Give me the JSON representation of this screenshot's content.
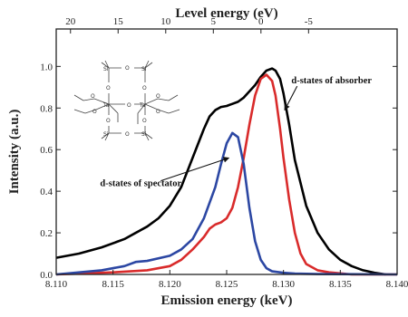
{
  "chart_data": {
    "type": "line",
    "title": "",
    "xlabel": "Emission energy (keV)",
    "ylabel": "Intensity (a.u.)",
    "x2label": "Level energy (eV)",
    "xlim": [
      8.11,
      8.14
    ],
    "ylim": [
      0,
      1.18
    ],
    "x2lim": [
      21.5,
      -14.3
    ],
    "xticks": [
      8.11,
      8.115,
      8.12,
      8.125,
      8.13,
      8.135,
      8.14
    ],
    "xtick_labels": [
      "8.110",
      "8.115",
      "8.120",
      "8.125",
      "8.130",
      "8.135",
      "8.140"
    ],
    "yticks": [
      0,
      0.2,
      0.4,
      0.6,
      0.8,
      1.0
    ],
    "ytick_labels": [
      "0.0",
      "0.2",
      "0.4",
      "0.6",
      "0.8",
      "1.0"
    ],
    "x2ticks": [
      20,
      15,
      10,
      5,
      0,
      -5
    ],
    "x2tick_labels": [
      "20",
      "15",
      "10",
      "5",
      "0",
      "-5"
    ],
    "grid": false,
    "series": [
      {
        "color": "#000000",
        "x": [
          8.11,
          8.112,
          8.114,
          8.116,
          8.117,
          8.118,
          8.119,
          8.12,
          8.121,
          8.122,
          8.123,
          8.1235,
          8.124,
          8.1245,
          8.125,
          8.1255,
          8.126,
          8.1265,
          8.127,
          8.1275,
          8.128,
          8.1285,
          8.129,
          8.1293,
          8.1297,
          8.13,
          8.1305,
          8.131,
          8.132,
          8.133,
          8.134,
          8.135,
          8.136,
          8.137,
          8.138,
          8.139
        ],
        "y": [
          0.08,
          0.1,
          0.13,
          0.17,
          0.2,
          0.23,
          0.27,
          0.33,
          0.42,
          0.56,
          0.7,
          0.76,
          0.79,
          0.805,
          0.81,
          0.82,
          0.83,
          0.85,
          0.88,
          0.91,
          0.95,
          0.98,
          0.99,
          0.98,
          0.94,
          0.87,
          0.72,
          0.55,
          0.33,
          0.2,
          0.12,
          0.07,
          0.04,
          0.02,
          0.008,
          0.0
        ]
      },
      {
        "color": "#d92b2b",
        "x": [
          8.11,
          8.115,
          8.118,
          8.12,
          8.121,
          8.122,
          8.123,
          8.1235,
          8.124,
          8.1245,
          8.125,
          8.1255,
          8.126,
          8.1265,
          8.127,
          8.1275,
          8.128,
          8.1285,
          8.129,
          8.1293,
          8.1297,
          8.13,
          8.1305,
          8.131,
          8.1315,
          8.132,
          8.133,
          8.134,
          8.135,
          8.136,
          8.14
        ],
        "y": [
          0.0,
          0.01,
          0.02,
          0.04,
          0.07,
          0.12,
          0.18,
          0.22,
          0.24,
          0.25,
          0.27,
          0.32,
          0.42,
          0.56,
          0.72,
          0.86,
          0.94,
          0.96,
          0.93,
          0.86,
          0.7,
          0.56,
          0.36,
          0.2,
          0.1,
          0.05,
          0.02,
          0.01,
          0.005,
          0.0,
          0.0
        ]
      },
      {
        "color": "#2c47a3",
        "x": [
          8.11,
          8.114,
          8.116,
          8.117,
          8.118,
          8.12,
          8.121,
          8.122,
          8.123,
          8.124,
          8.1245,
          8.125,
          8.1255,
          8.126,
          8.1265,
          8.127,
          8.1275,
          8.128,
          8.1285,
          8.129,
          8.13,
          8.131,
          8.133,
          8.14
        ],
        "y": [
          0.0,
          0.02,
          0.04,
          0.06,
          0.065,
          0.09,
          0.12,
          0.17,
          0.27,
          0.42,
          0.53,
          0.63,
          0.68,
          0.66,
          0.53,
          0.32,
          0.16,
          0.07,
          0.03,
          0.015,
          0.008,
          0.004,
          0.002,
          0.0
        ]
      }
    ],
    "annotations": [
      {
        "text": "d-states of absorber",
        "target_x": 8.1301,
        "target_y": 0.79,
        "anchor_x": 8.1312,
        "anchor_y": 0.905
      },
      {
        "text": "d-states of spectator",
        "target_x": 8.1252,
        "target_y": 0.56,
        "anchor_x": 8.1192,
        "anchor_y": 0.45
      }
    ]
  },
  "figure": {
    "inset_labels": [
      "Si",
      "O",
      "Ta"
    ]
  }
}
